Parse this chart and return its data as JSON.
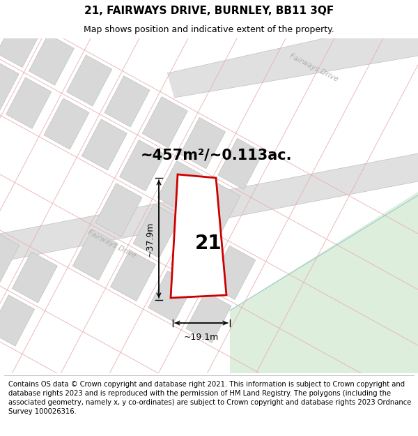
{
  "title": "21, FAIRWAYS DRIVE, BURNLEY, BB11 3QF",
  "subtitle": "Map shows position and indicative extent of the property.",
  "area_text": "~457m²/~0.113ac.",
  "plot_number": "21",
  "dim_width": "~19.1m",
  "dim_height": "~37.9m",
  "footer": "Contains OS data © Crown copyright and database right 2021. This information is subject to Crown copyright and database rights 2023 and is reproduced with the permission of HM Land Registry. The polygons (including the associated geometry, namely x, y co-ordinates) are subject to Crown copyright and database rights 2023 Ordnance Survey 100026316.",
  "map_bg": "#ffffff",
  "plot_border_color": "#cc0000",
  "building_fill": "#d8d8d8",
  "building_border": "#cc9999",
  "grid_line_color": "#e8b0b0",
  "road_fill": "#d0d0d0",
  "road_label_color": "#b0b0b0",
  "green_fill": "#ddeedd",
  "teal_line": "#99cccc",
  "title_fontsize": 11,
  "subtitle_fontsize": 9,
  "footer_fontsize": 7.2
}
